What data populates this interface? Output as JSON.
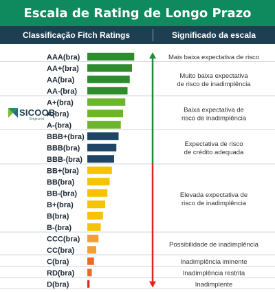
{
  "header": {
    "title": "Escala de Rating de Longo Prazo",
    "col_left": "Classificação Fitch Ratings",
    "col_right": "Significado da escala"
  },
  "logo": {
    "text": "SICOOB",
    "sub": "Engecred"
  },
  "colors": {
    "title_bg": "#0e8a5e",
    "header_bg": "#1e3e52",
    "dark_green": "#2e8b2e",
    "light_green": "#6cb52d",
    "navy": "#1f4566",
    "yellow": "#f5c300",
    "orange": "#f2a033",
    "orange_red": "#ec6a28",
    "red": "#e2231a",
    "arrow_green": "#1f8a3a",
    "arrow_red": "#e2231a"
  },
  "chart_data": {
    "type": "bar",
    "orientation": "horizontal",
    "categories": [
      "AAA(bra)",
      "AA+(bra)",
      "AA(bra)",
      "AA-(bra)",
      "A+(bra)",
      "A(bra)",
      "A-(bra)",
      "BBB+(bra)",
      "BBB(bra)",
      "BBB-(bra)",
      "BB+(bra)",
      "BB(bra)",
      "BB-(bra)",
      "B+(bra)",
      "B(bra)",
      "B-(bra)",
      "CCC(bra)",
      "CC(bra)",
      "C(bra)",
      "RD(bra)",
      "D(bra)"
    ],
    "values": [
      21,
      20,
      19,
      18,
      17,
      16,
      15,
      14,
      13,
      12,
      11,
      10,
      9,
      8,
      7,
      6,
      5,
      4,
      3,
      2,
      1
    ],
    "bar_colors": [
      "#2e8b2e",
      "#2e8b2e",
      "#2e8b2e",
      "#2e8b2e",
      "#6cb52d",
      "#6cb52d",
      "#6cb52d",
      "#1f4566",
      "#1f4566",
      "#1f4566",
      "#f5c300",
      "#f5c300",
      "#f5c300",
      "#f5c300",
      "#f5c300",
      "#f5c300",
      "#f2a033",
      "#f2a033",
      "#ec6a28",
      "#ec6a28",
      "#e2231a"
    ],
    "groups": [
      {
        "start": 0,
        "end": 0,
        "meaning": [
          "Mais baixa expectativa de risco"
        ]
      },
      {
        "start": 1,
        "end": 3,
        "meaning": [
          "Muito baixa expectativa",
          "de risco de inadimplência"
        ]
      },
      {
        "start": 4,
        "end": 6,
        "meaning": [
          "Baixa expectativa de",
          "risco de inadimplência"
        ]
      },
      {
        "start": 7,
        "end": 9,
        "meaning": [
          "Expectativa de risco",
          "de crédito adequada"
        ]
      },
      {
        "start": 10,
        "end": 15,
        "meaning": [
          "Elevada expectativa de",
          "risco de inadimplência"
        ]
      },
      {
        "start": 16,
        "end": 17,
        "meaning": [
          "Possibilidade de inadimplência"
        ]
      },
      {
        "start": 18,
        "end": 18,
        "meaning": [
          "Inadimplência iminente"
        ]
      },
      {
        "start": 19,
        "end": 19,
        "meaning": [
          "Inadimplência restrita"
        ]
      },
      {
        "start": 20,
        "end": 20,
        "meaning": [
          "Inadimplente"
        ]
      }
    ],
    "arrow": {
      "up_color": "#1f8a3a",
      "down_color": "#e2231a"
    }
  }
}
